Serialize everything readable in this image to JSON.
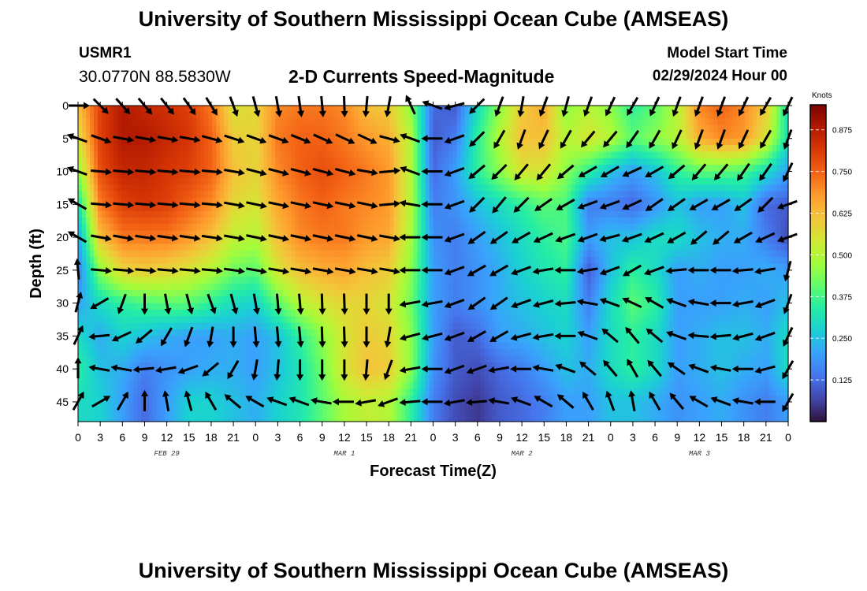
{
  "header": {
    "title": "University of Southern Mississippi Ocean Cube (AMSEAS)",
    "station": "USMR1",
    "coords": "30.0770N  88.5830W",
    "subtitle": "2-D Currents Speed-Magnitude",
    "model_start_label": "Model Start Time",
    "model_start_value": "02/29/2024 Hour 00"
  },
  "footer": {
    "title": "University of Southern Mississippi Ocean Cube (AMSEAS)"
  },
  "chart_data": {
    "type": "heatmap",
    "title": "2-D Currents Speed-Magnitude",
    "xlabel": "Forecast Time(Z)",
    "ylabel": "Depth (ft)",
    "x_range_hours": [
      0,
      96
    ],
    "x_tick_step_hours": 3,
    "x_tick_labels": [
      "0",
      "3",
      "6",
      "9",
      "12",
      "15",
      "18",
      "21",
      "0",
      "3",
      "6",
      "9",
      "12",
      "15",
      "18",
      "21",
      "0",
      "3",
      "6",
      "9",
      "12",
      "15",
      "18",
      "21",
      "0",
      "3",
      "6",
      "9",
      "12",
      "15",
      "18",
      "21",
      "0"
    ],
    "date_labels": [
      {
        "label": "FEB 29",
        "hour": 12
      },
      {
        "label": "MAR 1",
        "hour": 36
      },
      {
        "label": "MAR 2",
        "hour": 60
      },
      {
        "label": "MAR 3",
        "hour": 84
      }
    ],
    "y_range_ft": [
      0,
      48
    ],
    "y_ticks": [
      0,
      5,
      10,
      15,
      20,
      25,
      30,
      35,
      40,
      45
    ],
    "depth_levels_ft": [
      0,
      5,
      10,
      15,
      20,
      25,
      30,
      35,
      40,
      45
    ],
    "time_steps_hours": [
      0,
      3,
      6,
      9,
      12,
      15,
      18,
      21,
      24,
      27,
      30,
      33,
      36,
      39,
      42,
      45,
      48,
      51,
      54,
      57,
      60,
      63,
      66,
      69,
      72,
      75,
      78,
      81,
      84,
      87,
      90,
      93,
      96
    ],
    "speed_knots": [
      [
        0.62,
        0.8,
        0.88,
        0.85,
        0.83,
        0.8,
        0.72,
        0.55,
        0.58,
        0.7,
        0.72,
        0.72,
        0.7,
        0.62,
        0.6,
        0.45,
        0.12,
        0.1,
        0.3,
        0.45,
        0.6,
        0.65,
        0.45,
        0.5,
        0.45,
        0.35,
        0.4,
        0.5,
        0.7,
        0.75,
        0.7,
        0.6,
        0.3
      ],
      [
        0.55,
        0.8,
        0.88,
        0.88,
        0.85,
        0.82,
        0.75,
        0.6,
        0.58,
        0.72,
        0.75,
        0.75,
        0.72,
        0.68,
        0.65,
        0.5,
        0.1,
        0.15,
        0.35,
        0.5,
        0.62,
        0.62,
        0.5,
        0.55,
        0.5,
        0.4,
        0.45,
        0.5,
        0.65,
        0.7,
        0.68,
        0.55,
        0.3
      ],
      [
        0.45,
        0.78,
        0.85,
        0.85,
        0.82,
        0.8,
        0.75,
        0.62,
        0.58,
        0.7,
        0.75,
        0.78,
        0.75,
        0.72,
        0.68,
        0.5,
        0.12,
        0.2,
        0.35,
        0.45,
        0.55,
        0.55,
        0.45,
        0.35,
        0.25,
        0.2,
        0.25,
        0.35,
        0.4,
        0.4,
        0.38,
        0.3,
        0.2
      ],
      [
        0.3,
        0.72,
        0.8,
        0.82,
        0.8,
        0.75,
        0.7,
        0.58,
        0.55,
        0.66,
        0.72,
        0.75,
        0.72,
        0.7,
        0.68,
        0.5,
        0.15,
        0.18,
        0.25,
        0.3,
        0.35,
        0.4,
        0.38,
        0.15,
        0.15,
        0.12,
        0.18,
        0.25,
        0.2,
        0.2,
        0.25,
        0.12,
        0.1
      ],
      [
        0.2,
        0.62,
        0.72,
        0.72,
        0.72,
        0.68,
        0.62,
        0.52,
        0.5,
        0.62,
        0.7,
        0.72,
        0.72,
        0.68,
        0.66,
        0.48,
        0.18,
        0.15,
        0.2,
        0.25,
        0.3,
        0.35,
        0.38,
        0.2,
        0.25,
        0.25,
        0.3,
        0.3,
        0.25,
        0.22,
        0.22,
        0.15,
        0.08
      ],
      [
        0.15,
        0.45,
        0.58,
        0.6,
        0.58,
        0.55,
        0.5,
        0.42,
        0.4,
        0.55,
        0.62,
        0.65,
        0.66,
        0.62,
        0.6,
        0.45,
        0.2,
        0.15,
        0.18,
        0.22,
        0.28,
        0.32,
        0.35,
        0.1,
        0.25,
        0.35,
        0.3,
        0.2,
        0.22,
        0.2,
        0.2,
        0.22,
        0.2
      ],
      [
        0.2,
        0.3,
        0.35,
        0.38,
        0.4,
        0.4,
        0.35,
        0.3,
        0.28,
        0.4,
        0.5,
        0.55,
        0.58,
        0.58,
        0.55,
        0.42,
        0.2,
        0.15,
        0.18,
        0.22,
        0.25,
        0.28,
        0.3,
        0.15,
        0.3,
        0.4,
        0.35,
        0.2,
        0.2,
        0.2,
        0.22,
        0.2,
        0.25
      ],
      [
        0.3,
        0.22,
        0.28,
        0.25,
        0.22,
        0.2,
        0.2,
        0.22,
        0.2,
        0.25,
        0.35,
        0.45,
        0.55,
        0.6,
        0.58,
        0.45,
        0.2,
        0.1,
        0.12,
        0.2,
        0.22,
        0.25,
        0.28,
        0.2,
        0.3,
        0.35,
        0.3,
        0.2,
        0.22,
        0.25,
        0.25,
        0.22,
        0.3
      ],
      [
        0.35,
        0.25,
        0.22,
        0.15,
        0.18,
        0.2,
        0.22,
        0.22,
        0.2,
        0.25,
        0.32,
        0.42,
        0.55,
        0.62,
        0.6,
        0.45,
        0.18,
        0.1,
        0.08,
        0.12,
        0.15,
        0.2,
        0.25,
        0.22,
        0.3,
        0.35,
        0.3,
        0.2,
        0.22,
        0.25,
        0.22,
        0.2,
        0.3
      ],
      [
        0.3,
        0.28,
        0.2,
        0.12,
        0.2,
        0.28,
        0.28,
        0.25,
        0.22,
        0.28,
        0.32,
        0.4,
        0.48,
        0.52,
        0.5,
        0.35,
        0.15,
        0.08,
        0.05,
        0.1,
        0.12,
        0.15,
        0.2,
        0.2,
        0.25,
        0.25,
        0.22,
        0.18,
        0.2,
        0.22,
        0.18,
        0.15,
        0.2
      ]
    ],
    "vectors": [
      [
        0,
        45,
        48,
        50,
        52,
        55,
        58,
        70,
        75,
        80,
        82,
        85,
        88,
        95,
        100,
        -115,
        -160,
        -195,
        -225,
        -250,
        -260,
        -250,
        -255,
        -250,
        -245,
        -240,
        -245,
        -250,
        -250,
        -250,
        -245,
        -240,
        -245
      ],
      [
        -160,
        20,
        10,
        10,
        10,
        10,
        15,
        18,
        20,
        20,
        22,
        24,
        25,
        25,
        15,
        -160,
        -180,
        -200,
        -225,
        -240,
        -250,
        -245,
        -240,
        -230,
        -230,
        -235,
        -240,
        -245,
        -250,
        -250,
        -245,
        -240,
        -250
      ],
      [
        200,
        5,
        5,
        5,
        5,
        5,
        5,
        10,
        15,
        15,
        15,
        15,
        15,
        10,
        -5,
        -160,
        -180,
        -200,
        -220,
        -225,
        -230,
        -230,
        -220,
        -210,
        -210,
        -205,
        -210,
        -220,
        -230,
        -230,
        -235,
        -235,
        -245
      ],
      [
        210,
        5,
        5,
        5,
        5,
        5,
        5,
        10,
        12,
        12,
        12,
        12,
        12,
        12,
        -5,
        -170,
        -180,
        -200,
        -225,
        -230,
        -225,
        -215,
        -210,
        -200,
        -200,
        -205,
        -215,
        -215,
        -210,
        -210,
        -215,
        -225,
        -200
      ],
      [
        210,
        10,
        10,
        8,
        8,
        8,
        8,
        10,
        12,
        12,
        12,
        12,
        12,
        12,
        10,
        -180,
        -180,
        -200,
        -215,
        -215,
        -210,
        -205,
        -200,
        -200,
        -195,
        -200,
        -205,
        -210,
        -220,
        -220,
        -210,
        -205,
        -200
      ],
      [
        265,
        5,
        5,
        5,
        5,
        5,
        5,
        8,
        10,
        10,
        10,
        10,
        10,
        10,
        10,
        -180,
        -180,
        -200,
        -210,
        -210,
        -200,
        -190,
        -180,
        -190,
        -200,
        -210,
        -200,
        -185,
        -180,
        -180,
        -185,
        -190,
        -255
      ],
      [
        285,
        150,
        110,
        90,
        80,
        75,
        70,
        75,
        80,
        85,
        85,
        88,
        88,
        90,
        90,
        -190,
        -190,
        -200,
        -215,
        -215,
        -200,
        -195,
        -185,
        -170,
        -160,
        -155,
        -150,
        -160,
        -170,
        -180,
        -190,
        -200,
        -250
      ],
      [
        295,
        175,
        155,
        140,
        120,
        110,
        100,
        90,
        85,
        85,
        85,
        88,
        88,
        90,
        100,
        -195,
        -195,
        -200,
        -210,
        -210,
        -195,
        -190,
        -180,
        -160,
        -140,
        -130,
        -140,
        -160,
        -175,
        -185,
        -195,
        -200,
        -245
      ],
      [
        270,
        190,
        190,
        175,
        170,
        160,
        140,
        120,
        100,
        95,
        90,
        90,
        90,
        95,
        110,
        -190,
        -180,
        -200,
        -200,
        -190,
        -180,
        -170,
        -160,
        -140,
        -130,
        -120,
        -130,
        -145,
        -160,
        -170,
        -180,
        -195,
        -240
      ],
      [
        300,
        330,
        300,
        270,
        260,
        255,
        240,
        220,
        210,
        200,
        200,
        190,
        180,
        170,
        160,
        -185,
        -180,
        -190,
        -185,
        -170,
        -160,
        -150,
        -140,
        -120,
        -110,
        -100,
        -120,
        -130,
        -150,
        -160,
        -170,
        -180,
        -240
      ]
    ],
    "colorbar": {
      "unit": "Knots",
      "range": [
        0,
        0.95
      ],
      "ticks": [
        0.125,
        0.25,
        0.375,
        0.5,
        0.625,
        0.75,
        0.875
      ],
      "tick_labels": [
        "0.125",
        "0.250",
        "0.375",
        "0.500",
        "0.625",
        "0.750",
        "0.875"
      ],
      "colormap_stops": [
        "#30123b",
        "#4145ab",
        "#4675ed",
        "#39a2fc",
        "#1bcfd4",
        "#24eca6",
        "#61fc6c",
        "#a4fc3b",
        "#d1e834",
        "#f3c63a",
        "#fe9b2d",
        "#f36315",
        "#d93806",
        "#b11901",
        "#7a0402"
      ]
    }
  }
}
